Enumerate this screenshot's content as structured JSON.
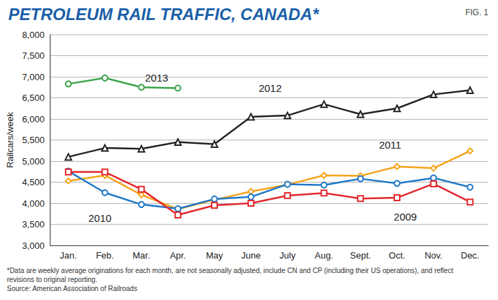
{
  "chart_data": {
    "type": "line",
    "title": "PETROLEUM RAIL TRAFFIC, CANADA*",
    "figure_label": "FIG. 1",
    "y_label": "Railcars/week",
    "notes": [
      "*Data are weekly average originations for each month, are not seasonally adjusted, include CN and CP (including their US operations), and reflect",
      "revisions to original reporting.",
      "Source: American Association of Railroads"
    ],
    "categories": [
      "Jan.",
      "Feb.",
      "Mar.",
      "Apr.",
      "May",
      "June",
      "July",
      "Aug.",
      "Sept.",
      "Oct.",
      "Nov.",
      "Dec."
    ],
    "series": [
      {
        "name": "2013",
        "color": "#3aa34a",
        "marker": "circle",
        "values": [
          6830,
          6970,
          6750,
          6730,
          null,
          null,
          null,
          null,
          null,
          null,
          null,
          null
        ]
      },
      {
        "name": "2012",
        "color": "#222222",
        "marker": "triangle",
        "values": [
          5100,
          5310,
          5290,
          5450,
          5400,
          6050,
          6080,
          6350,
          6110,
          6250,
          6580,
          6680
        ]
      },
      {
        "name": "2011",
        "color": "#f5a31a",
        "marker": "diamond",
        "values": [
          4530,
          4660,
          4200,
          3860,
          4080,
          4280,
          4440,
          4660,
          4650,
          4870,
          4830,
          5240
        ]
      },
      {
        "name": "2010",
        "color": "#1f77c8",
        "marker": "circle",
        "values": [
          4760,
          4250,
          3970,
          3870,
          4100,
          4150,
          4450,
          4430,
          4580,
          4470,
          4600,
          4380
        ]
      },
      {
        "name": "2009",
        "color": "#e3262b",
        "marker": "square",
        "values": [
          4740,
          4740,
          4330,
          3720,
          3950,
          4000,
          4180,
          4240,
          4110,
          4130,
          4460,
          4030
        ]
      }
    ],
    "ylim": [
      3000,
      8000
    ],
    "yticks": [
      {
        "value": 3000,
        "label": "3,000"
      },
      {
        "value": 3500,
        "label": "3,500"
      },
      {
        "value": 4000,
        "label": "4,000"
      },
      {
        "value": 4500,
        "label": "4,500"
      },
      {
        "value": 5000,
        "label": "5,000"
      },
      {
        "value": 5500,
        "label": "5,500"
      },
      {
        "value": 6000,
        "label": "6,000"
      },
      {
        "value": 6500,
        "label": "6,500"
      },
      {
        "value": 7000,
        "label": "7,000"
      },
      {
        "value": 7500,
        "label": "7,500"
      },
      {
        "value": 8000,
        "label": "8,000"
      }
    ],
    "grid": true
  }
}
